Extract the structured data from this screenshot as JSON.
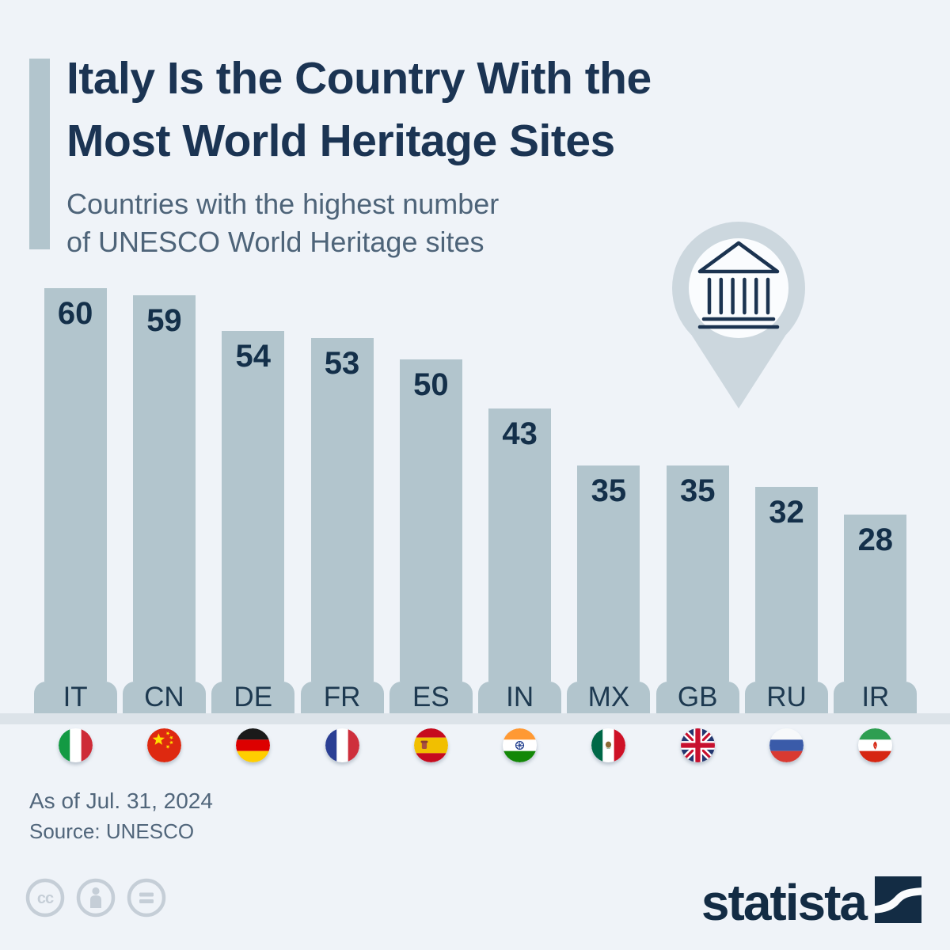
{
  "header": {
    "title_line1": "Italy Is the Country With the",
    "title_line2": "Most World Heritage Sites",
    "subtitle_line1": "Countries with the highest number",
    "subtitle_line2": "of UNESCO World Heritage sites"
  },
  "chart_data": {
    "type": "bar",
    "title": "Countries with the highest number of UNESCO World Heritage sites",
    "categories": [
      "IT",
      "CN",
      "DE",
      "FR",
      "ES",
      "IN",
      "MX",
      "GB",
      "RU",
      "IR"
    ],
    "values": [
      60,
      59,
      54,
      53,
      50,
      43,
      35,
      35,
      32,
      28
    ],
    "countries": [
      {
        "code": "IT",
        "value": 60,
        "flag_icon": "italy-flag-icon"
      },
      {
        "code": "CN",
        "value": 59,
        "flag_icon": "china-flag-icon"
      },
      {
        "code": "DE",
        "value": 54,
        "flag_icon": "germany-flag-icon"
      },
      {
        "code": "FR",
        "value": 53,
        "flag_icon": "france-flag-icon"
      },
      {
        "code": "ES",
        "value": 50,
        "flag_icon": "spain-flag-icon"
      },
      {
        "code": "IN",
        "value": 43,
        "flag_icon": "india-flag-icon"
      },
      {
        "code": "MX",
        "value": 35,
        "flag_icon": "mexico-flag-icon"
      },
      {
        "code": "GB",
        "value": 35,
        "flag_icon": "uk-flag-icon"
      },
      {
        "code": "RU",
        "value": 32,
        "flag_icon": "russia-flag-icon"
      },
      {
        "code": "IR",
        "value": 28,
        "flag_icon": "iran-flag-icon"
      }
    ],
    "ylim": [
      0,
      60
    ],
    "grid": false,
    "legend": false,
    "value_label_position": "inside-top",
    "bar_color": "#b2c5cd"
  },
  "footer": {
    "as_of": "As of Jul. 31, 2024",
    "source": "Source: UNESCO",
    "license_icon_names": [
      "cc-icon",
      "attribution-person-icon",
      "no-derivatives-equals-icon"
    ],
    "brand": "statista"
  },
  "colors": {
    "background": "#eff3f8",
    "bar": "#b2c5cd",
    "title_navy": "#1b3453",
    "subtitle_slate": "#4e6479",
    "value_navy": "#14304a",
    "floor_band": "#dce3e9",
    "license_gray": "#c5ced7",
    "brand_navy": "#132c44",
    "pin_gray": "#ccd7de"
  }
}
